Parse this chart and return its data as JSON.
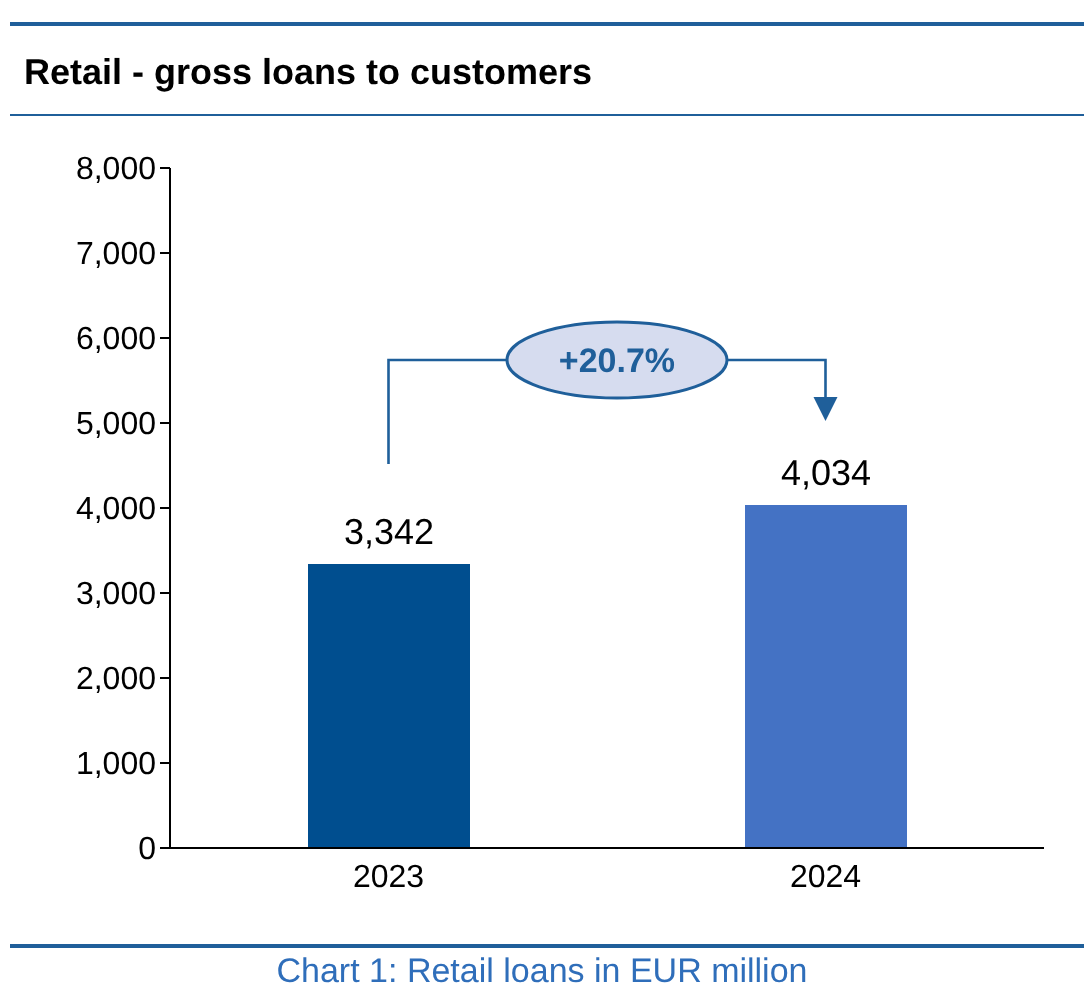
{
  "chart_data": {
    "type": "bar",
    "title": "Retail - gross loans to customers",
    "categories": [
      "2023",
      "2024"
    ],
    "values": [
      3342,
      4034
    ],
    "colors": [
      "#004e8f",
      "#4472c4"
    ],
    "value_labels": [
      "3,342",
      "4,034"
    ],
    "ylim": [
      0,
      8000
    ],
    "yticks": [
      {
        "value": 0,
        "label": "0"
      },
      {
        "value": 1000,
        "label": "1,000"
      },
      {
        "value": 2000,
        "label": "2,000"
      },
      {
        "value": 3000,
        "label": "3,000"
      },
      {
        "value": 4000,
        "label": "4,000"
      },
      {
        "value": 5000,
        "label": "5,000"
      },
      {
        "value": 6000,
        "label": "6,000"
      },
      {
        "value": 7000,
        "label": "7,000"
      },
      {
        "value": 8000,
        "label": "8,000"
      }
    ],
    "annotations": [
      "+20.7%",
      "Chart 1: Retail loans in EUR million"
    ]
  }
}
